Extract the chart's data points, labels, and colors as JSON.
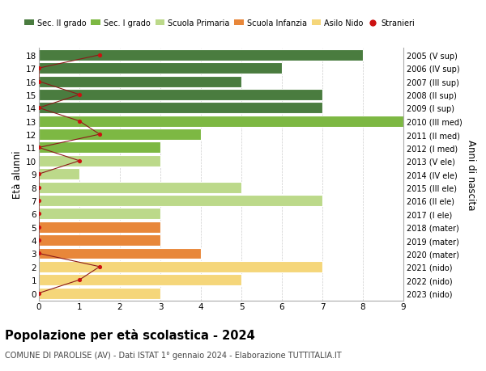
{
  "ages": [
    18,
    17,
    16,
    15,
    14,
    13,
    12,
    11,
    10,
    9,
    8,
    7,
    6,
    5,
    4,
    3,
    2,
    1,
    0
  ],
  "right_labels": [
    "2005 (V sup)",
    "2006 (IV sup)",
    "2007 (III sup)",
    "2008 (II sup)",
    "2009 (I sup)",
    "2010 (III med)",
    "2011 (II med)",
    "2012 (I med)",
    "2013 (V ele)",
    "2014 (IV ele)",
    "2015 (III ele)",
    "2016 (II ele)",
    "2017 (I ele)",
    "2018 (mater)",
    "2019 (mater)",
    "2020 (mater)",
    "2021 (nido)",
    "2022 (nido)",
    "2023 (nido)"
  ],
  "bar_values": [
    8,
    6,
    5,
    7,
    7,
    9,
    4,
    3,
    3,
    1,
    5,
    7,
    3,
    3,
    3,
    4,
    7,
    5,
    3
  ],
  "bar_colors": [
    "#4a7c3f",
    "#4a7c3f",
    "#4a7c3f",
    "#4a7c3f",
    "#4a7c3f",
    "#7db843",
    "#7db843",
    "#7db843",
    "#bcd98a",
    "#bcd98a",
    "#bcd98a",
    "#bcd98a",
    "#bcd98a",
    "#e8873a",
    "#e8873a",
    "#e8873a",
    "#f5d67a",
    "#f5d67a",
    "#f5d67a"
  ],
  "stranieri_ages": [
    18,
    17,
    16,
    15,
    14,
    13,
    12,
    11,
    10,
    9,
    8,
    7,
    6,
    5,
    4,
    3,
    2,
    1,
    0
  ],
  "stranieri_vals": [
    1.5,
    0,
    0,
    1,
    0,
    1,
    1.5,
    0,
    1,
    0,
    0,
    0,
    0,
    0,
    0,
    0,
    1.5,
    1,
    0
  ],
  "legend_labels": [
    "Sec. II grado",
    "Sec. I grado",
    "Scuola Primaria",
    "Scuola Infanzia",
    "Asilo Nido",
    "Stranieri"
  ],
  "legend_colors": [
    "#4a7c3f",
    "#7db843",
    "#bcd98a",
    "#e8873a",
    "#f5d67a",
    "#cc1111"
  ],
  "ylabel": "Età alunni",
  "right_ylabel": "Anni di nascita",
  "title": "Popolazione per età scolastica - 2024",
  "subtitle": "COMUNE DI PAROLISE (AV) - Dati ISTAT 1° gennaio 2024 - Elaborazione TUTTITALIA.IT",
  "xlim": [
    0,
    9
  ],
  "background_color": "#ffffff",
  "grid_color": "#cccccc"
}
